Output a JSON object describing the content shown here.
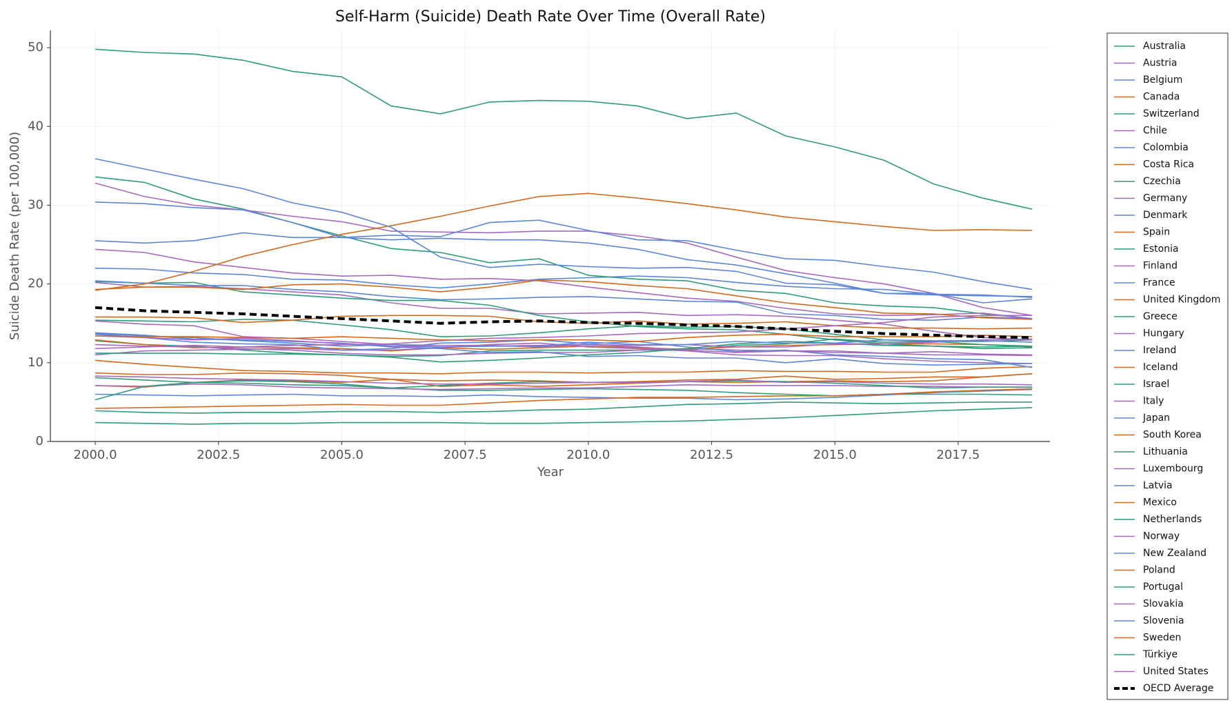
{
  "chart_data": {
    "type": "line",
    "title": "Self-Harm (Suicide) Death Rate Over Time (Overall Rate)",
    "x_label": "Year",
    "y_label": "Suicide Death Rate (per 100,000)",
    "x": [
      2000,
      2001,
      2002,
      2003,
      2004,
      2005,
      2006,
      2007,
      2008,
      2009,
      2010,
      2011,
      2012,
      2013,
      2014,
      2015,
      2016,
      2017,
      2018,
      2019
    ],
    "xlim": [
      1999.09,
      2019.36
    ],
    "xticks": [
      {
        "value": 2000,
        "label": "2000.0"
      },
      {
        "value": 2002.5,
        "label": "2002.5"
      },
      {
        "value": 2005,
        "label": "2005.0"
      },
      {
        "value": 2007.5,
        "label": "2007.5"
      },
      {
        "value": 2010,
        "label": "2010.0"
      },
      {
        "value": 2012.5,
        "label": "2012.5"
      },
      {
        "value": 2015,
        "label": "2015.0"
      },
      {
        "value": 2017.5,
        "label": "2017.5"
      }
    ],
    "ylim": [
      0,
      52.2
    ],
    "yticks": [
      0,
      10,
      20,
      30,
      40,
      50
    ],
    "grid": true,
    "legend": "outside right",
    "series": [
      {
        "name": "Australia",
        "color": "#2e9b7b",
        "values": [
          12.8,
          12.3,
          12.1,
          11.6,
          11.2,
          11.0,
          10.8,
          10.9,
          11.5,
          11.6,
          11.6,
          11.6,
          11.6,
          12.2,
          12.4,
          13.0,
          12.6,
          12.7,
          12.7,
          12.9
        ]
      },
      {
        "name": "Austria",
        "color": "#a569bd",
        "values": [
          20.2,
          19.6,
          19.7,
          19.4,
          19.0,
          18.6,
          17.6,
          16.9,
          16.9,
          16.2,
          16.3,
          16.4,
          16.0,
          16.1,
          15.9,
          15.4,
          14.9,
          14.0,
          13.2,
          12.9
        ]
      },
      {
        "name": "Belgium",
        "color": "#5b86d9",
        "values": [
          22.0,
          21.9,
          21.4,
          21.2,
          20.6,
          20.5,
          19.9,
          19.5,
          20.0,
          20.6,
          20.8,
          21.0,
          20.8,
          20.2,
          19.7,
          19.4,
          19.3,
          18.7,
          18.6,
          18.3
        ]
      },
      {
        "name": "Canada",
        "color": "#d2691e",
        "values": [
          12.9,
          12.3,
          11.9,
          12.0,
          11.9,
          11.8,
          11.5,
          11.9,
          11.7,
          11.9,
          12.1,
          11.9,
          11.7,
          12.0,
          12.2,
          12.3,
          12.4,
          12.4,
          12.3,
          12.0
        ]
      },
      {
        "name": "Switzerland",
        "color": "#2e9b7b",
        "values": [
          20.3,
          20.1,
          20.2,
          19.0,
          18.6,
          18.2,
          17.9,
          17.9,
          17.3,
          16.0,
          15.2,
          14.6,
          14.3,
          14.2,
          13.6,
          12.9,
          12.4,
          12.1,
          11.8,
          11.9
        ]
      },
      {
        "name": "Chile",
        "color": "#a569bd",
        "values": [
          11.0,
          11.5,
          11.6,
          11.7,
          11.8,
          11.6,
          11.6,
          11.9,
          12.3,
          12.5,
          12.0,
          11.8,
          11.5,
          11.0,
          10.9,
          10.9,
          10.5,
          10.2,
          10.0,
          9.9
        ]
      },
      {
        "name": "Colombia",
        "color": "#5b86d9",
        "values": [
          6.0,
          5.9,
          5.8,
          5.9,
          6.0,
          5.8,
          5.8,
          5.7,
          5.9,
          5.7,
          5.6,
          5.5,
          5.5,
          5.3,
          5.4,
          5.6,
          5.9,
          6.2,
          6.4,
          6.6
        ]
      },
      {
        "name": "Costa Rica",
        "color": "#d2691e",
        "values": [
          7.1,
          6.9,
          7.5,
          7.8,
          7.7,
          7.5,
          7.9,
          7.0,
          7.2,
          7.0,
          7.2,
          7.4,
          7.6,
          7.5,
          7.6,
          7.7,
          7.6,
          7.7,
          8.2,
          8.6
        ]
      },
      {
        "name": "Czechia",
        "color": "#2e9b7b",
        "values": [
          15.4,
          15.3,
          15.2,
          15.5,
          15.4,
          14.8,
          14.2,
          13.3,
          13.4,
          13.8,
          14.3,
          14.7,
          14.5,
          14.6,
          14.3,
          13.6,
          12.9,
          12.7,
          12.3,
          12.1
        ]
      },
      {
        "name": "Germany",
        "color": "#a569bd",
        "values": [
          12.3,
          12.1,
          12.0,
          11.8,
          11.6,
          11.2,
          11.0,
          11.0,
          11.2,
          11.3,
          11.3,
          11.6,
          11.8,
          11.6,
          11.5,
          11.5,
          11.2,
          11.0,
          11.0,
          10.9
        ]
      },
      {
        "name": "Denmark",
        "color": "#5b86d9",
        "values": [
          13.8,
          13.5,
          13.0,
          12.9,
          12.7,
          12.5,
          12.0,
          11.8,
          11.3,
          11.4,
          10.8,
          10.9,
          10.6,
          10.6,
          10.0,
          10.5,
          9.9,
          9.7,
          9.8,
          9.9
        ]
      },
      {
        "name": "Spain",
        "color": "#d2691e",
        "values": [
          8.7,
          8.5,
          8.5,
          8.7,
          8.6,
          8.4,
          7.9,
          7.7,
          7.8,
          7.7,
          7.5,
          7.6,
          7.8,
          7.9,
          8.3,
          7.9,
          8.0,
          8.2,
          8.2,
          8.6
        ]
      },
      {
        "name": "Estonia",
        "color": "#2e9b7b",
        "values": [
          33.6,
          32.9,
          30.8,
          29.5,
          27.8,
          26.1,
          24.5,
          24.0,
          22.7,
          23.2,
          21.1,
          20.6,
          20.4,
          19.2,
          18.8,
          17.6,
          17.2,
          17.0,
          16.2,
          15.6
        ]
      },
      {
        "name": "Finland",
        "color": "#a569bd",
        "values": [
          24.4,
          24.0,
          22.8,
          22.1,
          21.4,
          21.0,
          21.1,
          20.6,
          20.7,
          20.4,
          19.6,
          18.9,
          18.2,
          17.8,
          16.9,
          16.2,
          16.0,
          16.1,
          16.3,
          15.6
        ]
      },
      {
        "name": "France",
        "color": "#5b86d9",
        "values": [
          20.4,
          20.1,
          19.8,
          19.8,
          19.3,
          19.0,
          18.4,
          18.0,
          18.1,
          18.3,
          18.4,
          18.1,
          17.8,
          17.7,
          16.2,
          16.0,
          15.5,
          15.4,
          15.8,
          15.6
        ]
      },
      {
        "name": "United Kingdom",
        "color": "#d2691e",
        "values": [
          10.3,
          9.8,
          9.4,
          9.0,
          8.9,
          8.7,
          8.7,
          8.6,
          8.8,
          8.8,
          8.7,
          8.8,
          8.8,
          9.0,
          8.9,
          8.9,
          8.8,
          8.8,
          9.3,
          9.5
        ]
      },
      {
        "name": "Greece",
        "color": "#2e9b7b",
        "values": [
          3.9,
          3.7,
          3.6,
          3.7,
          3.7,
          3.8,
          3.8,
          3.7,
          3.8,
          4.0,
          4.1,
          4.4,
          4.7,
          4.8,
          5.0,
          4.9,
          4.8,
          4.9,
          5.0,
          5.0
        ]
      },
      {
        "name": "Hungary",
        "color": "#a569bd",
        "values": [
          32.8,
          31.1,
          30.0,
          29.4,
          28.6,
          27.9,
          26.7,
          26.6,
          26.5,
          26.7,
          26.7,
          26.1,
          25.2,
          23.4,
          21.7,
          20.8,
          20.0,
          18.8,
          17.0,
          16.0
        ]
      },
      {
        "name": "Ireland",
        "color": "#5b86d9",
        "values": [
          13.6,
          13.2,
          12.6,
          12.4,
          12.3,
          11.6,
          11.8,
          12.5,
          12.6,
          12.9,
          12.4,
          12.7,
          12.0,
          11.4,
          11.6,
          11.0,
          10.8,
          10.5,
          10.4,
          9.4
        ]
      },
      {
        "name": "Iceland",
        "color": "#d2691e",
        "values": [
          15.8,
          15.8,
          15.7,
          15.1,
          15.4,
          15.9,
          16.0,
          16.0,
          15.9,
          15.2,
          15.0,
          15.3,
          14.9,
          15.0,
          15.2,
          14.7,
          14.4,
          14.4,
          14.3,
          14.4
        ]
      },
      {
        "name": "Israel",
        "color": "#2e9b7b",
        "values": [
          8.1,
          7.8,
          7.5,
          7.4,
          7.2,
          7.1,
          6.8,
          6.5,
          6.5,
          6.6,
          6.7,
          6.6,
          6.5,
          6.2,
          6.0,
          5.8,
          6.0,
          6.0,
          6.0,
          5.9
        ]
      },
      {
        "name": "Italy",
        "color": "#a569bd",
        "values": [
          7.1,
          7.0,
          7.3,
          7.2,
          6.9,
          6.8,
          6.7,
          6.6,
          6.7,
          6.8,
          6.8,
          7.0,
          7.2,
          7.1,
          7.1,
          7.1,
          7.0,
          7.0,
          6.9,
          6.9
        ]
      },
      {
        "name": "Japan",
        "color": "#5b86d9",
        "values": [
          25.5,
          25.2,
          25.5,
          26.5,
          25.9,
          25.9,
          25.6,
          25.8,
          25.6,
          25.6,
          25.2,
          24.4,
          23.1,
          22.4,
          21.3,
          20.1,
          18.8,
          18.6,
          18.5,
          18.4
        ]
      },
      {
        "name": "South Korea",
        "color": "#d2691e",
        "values": [
          19.2,
          20.0,
          21.6,
          23.5,
          25.0,
          26.3,
          27.4,
          28.6,
          29.9,
          31.1,
          31.5,
          30.9,
          30.2,
          29.4,
          28.5,
          27.9,
          27.3,
          26.8,
          26.9,
          26.8
        ]
      },
      {
        "name": "Lithuania",
        "color": "#2e9b7b",
        "values": [
          49.8,
          49.4,
          49.2,
          48.4,
          47.0,
          46.3,
          42.6,
          41.6,
          43.1,
          43.3,
          43.2,
          42.6,
          41.0,
          41.7,
          38.8,
          37.4,
          35.7,
          32.7,
          30.9,
          29.5
        ]
      },
      {
        "name": "Luxembourg",
        "color": "#a569bd",
        "values": [
          15.3,
          14.9,
          14.7,
          13.3,
          13.1,
          12.7,
          12.3,
          12.2,
          12.2,
          12.0,
          12.3,
          12.0,
          11.6,
          11.3,
          11.5,
          11.3,
          11.2,
          11.4,
          11.1,
          11.0
        ]
      },
      {
        "name": "Latvia",
        "color": "#5b86d9",
        "values": [
          35.9,
          34.6,
          33.3,
          32.1,
          30.3,
          29.1,
          27.2,
          23.4,
          22.1,
          22.5,
          22.2,
          22.0,
          22.1,
          21.6,
          20.1,
          19.9,
          18.8,
          18.8,
          17.6,
          18.1
        ]
      },
      {
        "name": "Mexico",
        "color": "#d2691e",
        "values": [
          4.2,
          4.3,
          4.4,
          4.5,
          4.6,
          4.7,
          4.6,
          4.6,
          4.9,
          5.2,
          5.4,
          5.6,
          5.6,
          5.7,
          5.8,
          5.8,
          6.0,
          6.3,
          6.5,
          6.7
        ]
      },
      {
        "name": "Netherlands",
        "color": "#2e9b7b",
        "values": [
          11.2,
          11.2,
          11.2,
          11.1,
          11.1,
          11.0,
          10.7,
          10.1,
          10.3,
          10.6,
          11.0,
          11.3,
          11.8,
          12.4,
          12.7,
          12.5,
          12.2,
          12.1,
          12.0,
          12.1
        ]
      },
      {
        "name": "Norway",
        "color": "#a569bd",
        "values": [
          13.4,
          13.2,
          12.9,
          13.1,
          12.8,
          12.4,
          12.1,
          12.0,
          12.1,
          12.2,
          12.3,
          12.2,
          12.3,
          12.0,
          12.0,
          12.4,
          12.4,
          12.6,
          12.9,
          13.0
        ]
      },
      {
        "name": "New Zealand",
        "color": "#5b86d9",
        "values": [
          13.7,
          13.4,
          13.2,
          12.8,
          12.5,
          12.1,
          12.3,
          12.0,
          12.1,
          12.1,
          12.6,
          12.3,
          12.3,
          12.7,
          12.5,
          12.5,
          12.9,
          12.8,
          12.8,
          12.6
        ]
      },
      {
        "name": "Poland",
        "color": "#d2691e",
        "values": [
          19.3,
          19.6,
          19.6,
          19.3,
          19.9,
          20.0,
          19.6,
          19.0,
          19.6,
          20.5,
          20.3,
          19.8,
          19.4,
          18.5,
          17.6,
          17.0,
          16.3,
          16.2,
          15.7,
          15.5
        ]
      },
      {
        "name": "Portugal",
        "color": "#2e9b7b",
        "values": [
          5.3,
          7.0,
          7.5,
          7.7,
          7.6,
          7.3,
          6.8,
          7.1,
          7.4,
          7.6,
          7.5,
          7.5,
          7.6,
          7.7,
          7.6,
          7.4,
          7.1,
          6.8,
          6.9,
          6.9
        ]
      },
      {
        "name": "Slovakia",
        "color": "#a569bd",
        "values": [
          8.3,
          8.2,
          8.0,
          7.9,
          7.8,
          7.6,
          7.4,
          7.3,
          7.3,
          7.4,
          7.5,
          7.5,
          7.6,
          7.8,
          7.5,
          7.6,
          7.4,
          7.3,
          7.3,
          7.2
        ]
      },
      {
        "name": "Slovenia",
        "color": "#5b86d9",
        "values": [
          30.4,
          30.2,
          29.7,
          29.4,
          27.8,
          25.9,
          26.2,
          26.0,
          27.8,
          28.1,
          26.8,
          25.6,
          25.5,
          24.3,
          23.2,
          23.0,
          22.2,
          21.5,
          20.3,
          19.3
        ]
      },
      {
        "name": "Sweden",
        "color": "#d2691e",
        "values": [
          13.4,
          13.3,
          13.3,
          13.2,
          13.1,
          13.3,
          13.1,
          12.9,
          12.8,
          12.9,
          12.9,
          12.7,
          13.2,
          13.5,
          13.6,
          13.3,
          13.3,
          13.3,
          13.5,
          13.3
        ]
      },
      {
        "name": "Türkiye",
        "color": "#2e9b7b",
        "values": [
          2.4,
          2.3,
          2.2,
          2.3,
          2.3,
          2.4,
          2.4,
          2.4,
          2.3,
          2.3,
          2.4,
          2.5,
          2.6,
          2.8,
          3.0,
          3.3,
          3.6,
          3.9,
          4.1,
          4.3
        ]
      },
      {
        "name": "United States",
        "color": "#a569bd",
        "values": [
          11.8,
          12.0,
          12.2,
          12.0,
          12.2,
          12.3,
          12.4,
          12.8,
          13.1,
          13.2,
          13.4,
          13.7,
          13.8,
          13.9,
          14.3,
          14.7,
          15.1,
          15.8,
          16.0,
          16.0
        ]
      },
      {
        "name": "OECD Average",
        "color": "#000000",
        "linestyle": "dashed",
        "values": [
          17.0,
          16.6,
          16.4,
          16.2,
          15.9,
          15.6,
          15.3,
          15.0,
          15.2,
          15.3,
          15.1,
          15.0,
          14.8,
          14.6,
          14.3,
          14.0,
          13.7,
          13.5,
          13.3,
          13.2
        ]
      }
    ]
  }
}
